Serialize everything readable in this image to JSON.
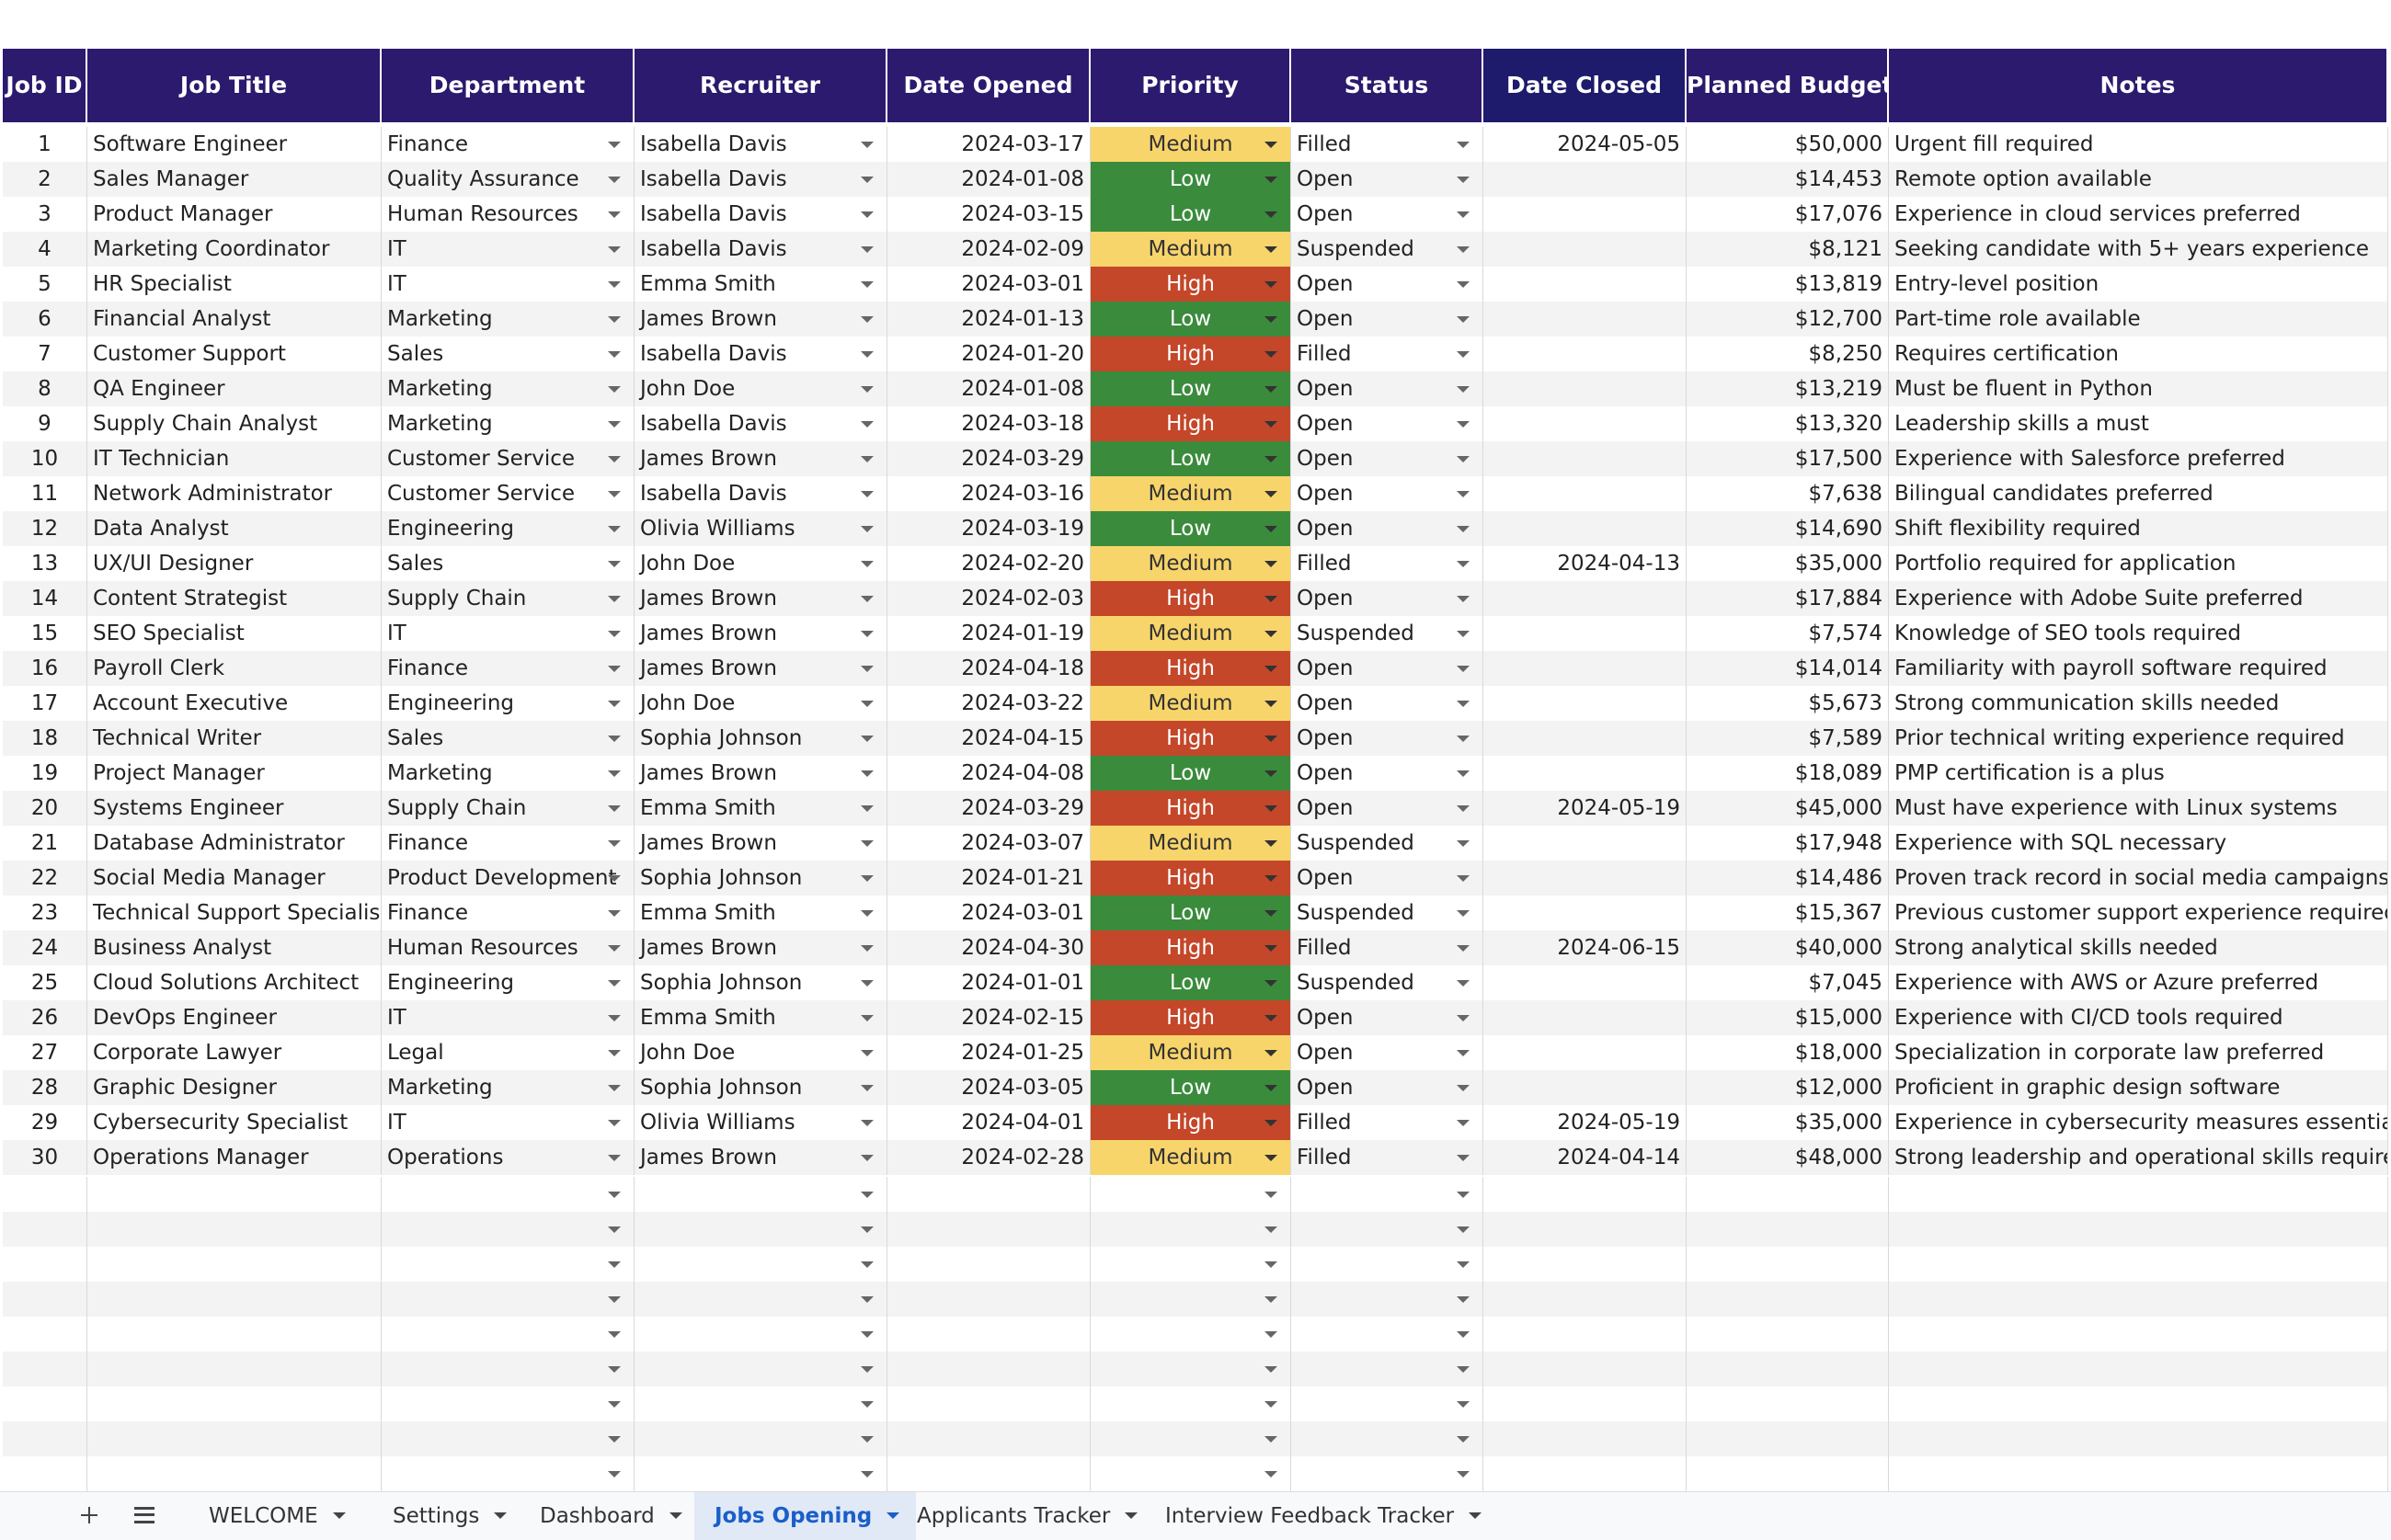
{
  "header_row": [
    "Job ID",
    "Job Title",
    "Department",
    "Recruiter",
    "Date Opened",
    "Priority",
    "Status",
    "Date Closed",
    "Planned Budget",
    "Notes"
  ],
  "rows": [
    [
      1,
      "Software Engineer",
      "Finance",
      "Isabella Davis",
      "2024-03-17",
      "Medium",
      "Filled",
      "2024-05-05",
      "$50,000",
      "Urgent fill required"
    ],
    [
      2,
      "Sales Manager",
      "Quality Assurance",
      "Isabella Davis",
      "2024-01-08",
      "Low",
      "Open",
      null,
      "$14,453",
      "Remote option available"
    ],
    [
      3,
      "Product Manager",
      "Human Resources",
      "Isabella Davis",
      "2024-03-15",
      "Low",
      "Open",
      null,
      "$17,076",
      "Experience in cloud services preferred"
    ],
    [
      4,
      "Marketing Coordinator",
      "IT",
      "Isabella Davis",
      "2024-02-09",
      "Medium",
      "Suspended",
      null,
      "$8,121",
      "Seeking candidate with 5+ years experience"
    ],
    [
      5,
      "HR Specialist",
      "IT",
      "Emma Smith",
      "2024-03-01",
      "High",
      "Open",
      null,
      "$13,819",
      "Entry-level position"
    ],
    [
      6,
      "Financial Analyst",
      "Marketing",
      "James Brown",
      "2024-01-13",
      "Low",
      "Open",
      null,
      "$12,700",
      "Part-time role available"
    ],
    [
      7,
      "Customer Support",
      "Sales",
      "Isabella Davis",
      "2024-01-20",
      "High",
      "Filled",
      null,
      "$8,250",
      "Requires certification"
    ],
    [
      8,
      "QA Engineer",
      "Marketing",
      "John Doe",
      "2024-01-08",
      "Low",
      "Open",
      null,
      "$13,219",
      "Must be fluent in Python"
    ],
    [
      9,
      "Supply Chain Analyst",
      "Marketing",
      "Isabella Davis",
      "2024-03-18",
      "High",
      "Open",
      null,
      "$13,320",
      "Leadership skills a must"
    ],
    [
      10,
      "IT Technician",
      "Customer Service",
      "James Brown",
      "2024-03-29",
      "Low",
      "Open",
      null,
      "$17,500",
      "Experience with Salesforce preferred"
    ],
    [
      11,
      "Network Administrator",
      "Customer Service",
      "Isabella Davis",
      "2024-03-16",
      "Medium",
      "Open",
      null,
      "$7,638",
      "Bilingual candidates preferred"
    ],
    [
      12,
      "Data Analyst",
      "Engineering",
      "Olivia Williams",
      "2024-03-19",
      "Low",
      "Open",
      null,
      "$14,690",
      "Shift flexibility required"
    ],
    [
      13,
      "UX/UI Designer",
      "Sales",
      "John Doe",
      "2024-02-20",
      "Medium",
      "Filled",
      "2024-04-13",
      "$35,000",
      "Portfolio required for application"
    ],
    [
      14,
      "Content Strategist",
      "Supply Chain",
      "James Brown",
      "2024-02-03",
      "High",
      "Open",
      null,
      "$17,884",
      "Experience with Adobe Suite preferred"
    ],
    [
      15,
      "SEO Specialist",
      "IT",
      "James Brown",
      "2024-01-19",
      "Medium",
      "Suspended",
      null,
      "$7,574",
      "Knowledge of SEO tools required"
    ],
    [
      16,
      "Payroll Clerk",
      "Finance",
      "James Brown",
      "2024-04-18",
      "High",
      "Open",
      null,
      "$14,014",
      "Familiarity with payroll software required"
    ],
    [
      17,
      "Account Executive",
      "Engineering",
      "John Doe",
      "2024-03-22",
      "Medium",
      "Open",
      null,
      "$5,673",
      "Strong communication skills needed"
    ],
    [
      18,
      "Technical Writer",
      "Sales",
      "Sophia Johnson",
      "2024-04-15",
      "High",
      "Open",
      null,
      "$7,589",
      "Prior technical writing experience required"
    ],
    [
      19,
      "Project Manager",
      "Marketing",
      "James Brown",
      "2024-04-08",
      "Low",
      "Open",
      null,
      "$18,089",
      "PMP certification is a plus"
    ],
    [
      20,
      "Systems Engineer",
      "Supply Chain",
      "Emma Smith",
      "2024-03-29",
      "High",
      "Open",
      "2024-05-19",
      "$45,000",
      "Must have experience with Linux systems"
    ],
    [
      21,
      "Database Administrator",
      "Finance",
      "James Brown",
      "2024-03-07",
      "Medium",
      "Suspended",
      null,
      "$17,948",
      "Experience with SQL necessary"
    ],
    [
      22,
      "Social Media Manager",
      "Product Development",
      "Sophia Johnson",
      "2024-01-21",
      "High",
      "Open",
      null,
      "$14,486",
      "Proven track record in social media campaigns"
    ],
    [
      23,
      "Technical Support Specialist",
      "Finance",
      "Emma Smith",
      "2024-03-01",
      "Low",
      "Suspended",
      null,
      "$15,367",
      "Previous customer support experience required"
    ],
    [
      24,
      "Business Analyst",
      "Human Resources",
      "James Brown",
      "2024-04-30",
      "High",
      "Filled",
      "2024-06-15",
      "$40,000",
      "Strong analytical skills needed"
    ],
    [
      25,
      "Cloud Solutions Architect",
      "Engineering",
      "Sophia Johnson",
      "2024-01-01",
      "Low",
      "Suspended",
      null,
      "$7,045",
      "Experience with AWS or Azure preferred"
    ],
    [
      26,
      "DevOps Engineer",
      "IT",
      "Emma Smith",
      "2024-02-15",
      "High",
      "Open",
      null,
      "$15,000",
      "Experience with CI/CD tools required"
    ],
    [
      27,
      "Corporate Lawyer",
      "Legal",
      "John Doe",
      "2024-01-25",
      "Medium",
      "Open",
      null,
      "$18,000",
      "Specialization in corporate law preferred"
    ],
    [
      28,
      "Graphic Designer",
      "Marketing",
      "Sophia Johnson",
      "2024-03-05",
      "Low",
      "Open",
      null,
      "$12,000",
      "Proficient in graphic design software"
    ],
    [
      29,
      "Cybersecurity Specialist",
      "IT",
      "Olivia Williams",
      "2024-04-01",
      "High",
      "Filled",
      "2024-05-19",
      "$35,000",
      "Experience in cybersecurity measures essential"
    ],
    [
      30,
      "Operations Manager",
      "Operations",
      "James Brown",
      "2024-02-28",
      "Medium",
      "Filled",
      "2024-04-14",
      "$48,000",
      "Strong leadership and operational skills required"
    ]
  ],
  "tabs": [
    {
      "label": "WELCOME"
    },
    {
      "label": "Settings"
    },
    {
      "label": "Dashboard"
    },
    {
      "label": "Jobs Opening",
      "selected": true
    },
    {
      "label": "Applicants Tracker"
    },
    {
      "label": "Interview Feedback Tracker"
    }
  ]
}
